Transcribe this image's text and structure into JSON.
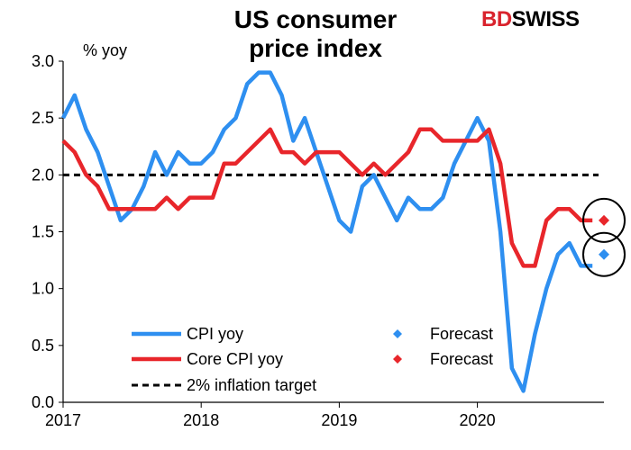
{
  "title_line1": "US consumer",
  "title_line2": "price index",
  "logo": {
    "part1": "BD",
    "part2": "SWISS"
  },
  "chart_data": {
    "type": "line",
    "unit_label": "% yoy",
    "ylim": [
      0,
      3
    ],
    "yticks": [
      "0.0",
      "0.5",
      "1.0",
      "1.5",
      "2.0",
      "2.5",
      "3.0"
    ],
    "xticks": [
      "2017",
      "2018",
      "2019",
      "2020"
    ],
    "xlim": [
      "2017-01",
      "2020-12"
    ],
    "x": [
      "2017-01",
      "2017-02",
      "2017-03",
      "2017-04",
      "2017-05",
      "2017-06",
      "2017-07",
      "2017-08",
      "2017-09",
      "2017-10",
      "2017-11",
      "2017-12",
      "2018-01",
      "2018-02",
      "2018-03",
      "2018-04",
      "2018-05",
      "2018-06",
      "2018-07",
      "2018-08",
      "2018-09",
      "2018-10",
      "2018-11",
      "2018-12",
      "2019-01",
      "2019-02",
      "2019-03",
      "2019-04",
      "2019-05",
      "2019-06",
      "2019-07",
      "2019-08",
      "2019-09",
      "2019-10",
      "2019-11",
      "2019-12",
      "2020-01",
      "2020-02",
      "2020-03",
      "2020-04",
      "2020-05",
      "2020-06",
      "2020-07",
      "2020-08",
      "2020-09",
      "2020-10",
      "2020-11",
      "2020-12"
    ],
    "series": [
      {
        "name": "CPI yoy",
        "color": "#2e8ff0",
        "values": [
          2.5,
          2.7,
          2.4,
          2.2,
          1.9,
          1.6,
          1.7,
          1.9,
          2.2,
          2.0,
          2.2,
          2.1,
          2.1,
          2.2,
          2.4,
          2.5,
          2.8,
          2.9,
          2.9,
          2.7,
          2.3,
          2.5,
          2.2,
          1.9,
          1.6,
          1.5,
          1.9,
          2.0,
          1.8,
          1.6,
          1.8,
          1.7,
          1.7,
          1.8,
          2.1,
          2.3,
          2.5,
          2.3,
          1.5,
          0.3,
          0.1,
          0.6,
          1.0,
          1.3,
          1.4,
          1.2,
          1.2,
          null
        ]
      },
      {
        "name": "Core CPI yoy",
        "color": "#e8262b",
        "values": [
          2.3,
          2.2,
          2.0,
          1.9,
          1.7,
          1.7,
          1.7,
          1.7,
          1.7,
          1.8,
          1.7,
          1.8,
          1.8,
          1.8,
          2.1,
          2.1,
          2.2,
          2.3,
          2.4,
          2.2,
          2.2,
          2.1,
          2.2,
          2.2,
          2.2,
          2.1,
          2.0,
          2.1,
          2.0,
          2.1,
          2.2,
          2.4,
          2.4,
          2.3,
          2.3,
          2.3,
          2.3,
          2.4,
          2.1,
          1.4,
          1.2,
          1.2,
          1.6,
          1.7,
          1.7,
          1.6,
          1.6,
          null
        ]
      },
      {
        "name": "2% inflation target",
        "color": "#000000",
        "style": "dashed",
        "values_constant": 2.0
      }
    ],
    "forecasts": [
      {
        "name": "Forecast",
        "series": "CPI yoy",
        "x": "2020-12",
        "value": 1.3,
        "color": "#2e8ff0",
        "marker": "diamond"
      },
      {
        "name": "Forecast",
        "series": "Core CPI yoy",
        "x": "2020-12",
        "value": 1.6,
        "color": "#e8262b",
        "marker": "diamond"
      }
    ],
    "annotations": [
      "circle around CPI forecast",
      "circle around Core CPI forecast"
    ],
    "legend": {
      "placement": "bottom-left",
      "entries": [
        {
          "label": "CPI yoy",
          "color": "#2e8ff0",
          "kind": "line"
        },
        {
          "label": "Forecast",
          "color": "#2e8ff0",
          "kind": "diamond"
        },
        {
          "label": "Core CPI yoy",
          "color": "#e8262b",
          "kind": "line"
        },
        {
          "label": "Forecast",
          "color": "#e8262b",
          "kind": "diamond"
        },
        {
          "label": "2% inflation target",
          "color": "#000000",
          "kind": "dashed"
        }
      ]
    },
    "grid": false
  }
}
